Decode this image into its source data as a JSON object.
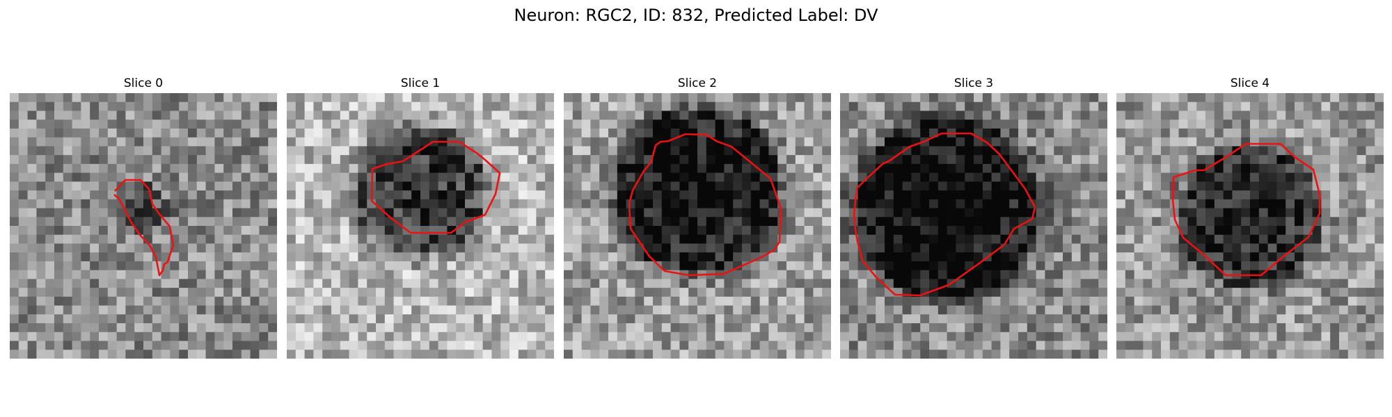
{
  "figure": {
    "title": "Neuron: RGC2, ID: 832, Predicted Label: DV"
  },
  "panels": [
    {
      "label": "Slice 0"
    },
    {
      "label": "Slice 1"
    },
    {
      "label": "Slice 2"
    },
    {
      "label": "Slice 3"
    },
    {
      "label": "Slice 4"
    }
  ],
  "colors": {
    "contour": "#ee1111"
  }
}
